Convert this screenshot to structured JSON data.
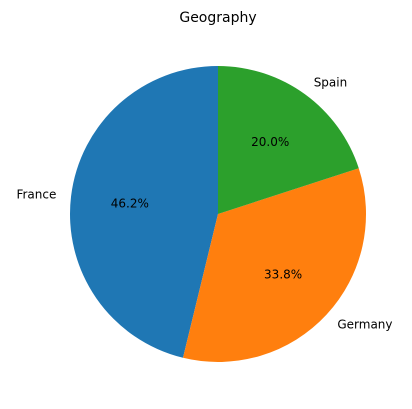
{
  "chart_data": {
    "type": "pie",
    "title": "Geography",
    "categories": [
      "France",
      "Germany",
      "Spain"
    ],
    "values": [
      46.2,
      33.8,
      20.0
    ],
    "labels": [
      "46.2%",
      "33.8%",
      "20.0%"
    ],
    "colors": [
      "#1f77b4",
      "#ff7f0e",
      "#2ca02c"
    ],
    "start_angle_deg": 90,
    "direction": "counterclockwise"
  }
}
